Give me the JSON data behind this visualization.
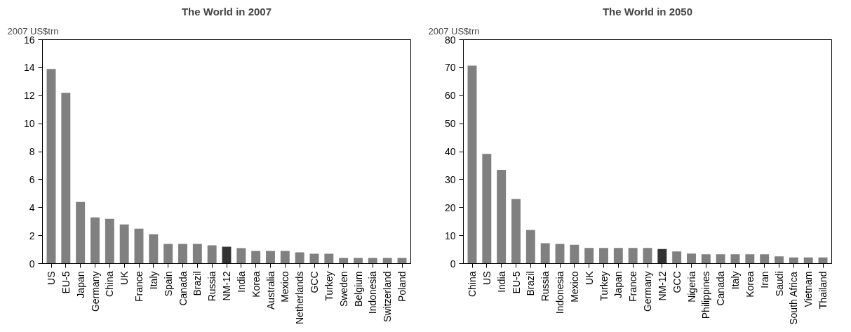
{
  "chart_data": [
    {
      "type": "bar",
      "title": "The World in 2007",
      "ylabel": "2007 US$trn",
      "categories": [
        "US",
        "EU-5",
        "Japan",
        "Germany",
        "China",
        "UK",
        "France",
        "Italy",
        "Spain",
        "Canada",
        "Brazil",
        "Russia",
        "NM-12",
        "India",
        "Korea",
        "Australia",
        "Mexico",
        "Netherlands",
        "GCC",
        "Turkey",
        "Sweden",
        "Belgium",
        "Indonesia",
        "Switzerland",
        "Poland"
      ],
      "values": [
        13.9,
        12.2,
        4.4,
        3.3,
        3.2,
        2.8,
        2.5,
        2.1,
        1.4,
        1.4,
        1.4,
        1.3,
        1.2,
        1.1,
        0.9,
        0.9,
        0.9,
        0.8,
        0.7,
        0.7,
        0.4,
        0.4,
        0.4,
        0.4,
        0.4
      ],
      "colors": [
        "#808080",
        "#808080",
        "#808080",
        "#808080",
        "#808080",
        "#808080",
        "#808080",
        "#808080",
        "#808080",
        "#808080",
        "#808080",
        "#808080",
        "#333333",
        "#808080",
        "#808080",
        "#808080",
        "#808080",
        "#808080",
        "#808080",
        "#808080",
        "#808080",
        "#808080",
        "#808080",
        "#808080",
        "#808080"
      ],
      "ylim": [
        0,
        16
      ],
      "yticks": [
        0,
        2,
        4,
        6,
        8,
        10,
        12,
        14,
        16
      ],
      "grid": false
    },
    {
      "type": "bar",
      "title": "The World in 2050",
      "ylabel": "2007 US$trn",
      "categories": [
        "China",
        "US",
        "India",
        "EU-5",
        "Brazil",
        "Russia",
        "Indonesia",
        "Mexico",
        "UK",
        "Turkey",
        "Japan",
        "France",
        "Germany",
        "NM-12",
        "GCC",
        "Nigeria",
        "Philippines",
        "Canada",
        "Italy",
        "Korea",
        "Iran",
        "Saudi",
        "South Africa",
        "Vietnam",
        "Thailand"
      ],
      "values": [
        70.7,
        39.2,
        33.5,
        23.1,
        12.0,
        7.3,
        7.0,
        6.7,
        5.6,
        5.6,
        5.6,
        5.6,
        5.6,
        5.2,
        4.3,
        3.6,
        3.3,
        3.3,
        3.3,
        3.3,
        3.3,
        2.6,
        2.2,
        2.2,
        2.2
      ],
      "colors": [
        "#808080",
        "#808080",
        "#808080",
        "#808080",
        "#808080",
        "#808080",
        "#808080",
        "#808080",
        "#808080",
        "#808080",
        "#808080",
        "#808080",
        "#808080",
        "#333333",
        "#808080",
        "#808080",
        "#808080",
        "#808080",
        "#808080",
        "#808080",
        "#808080",
        "#808080",
        "#808080",
        "#808080",
        "#808080"
      ],
      "ylim": [
        0,
        80
      ],
      "yticks": [
        0,
        10,
        20,
        30,
        40,
        50,
        60,
        70,
        80
      ],
      "grid": false
    }
  ]
}
